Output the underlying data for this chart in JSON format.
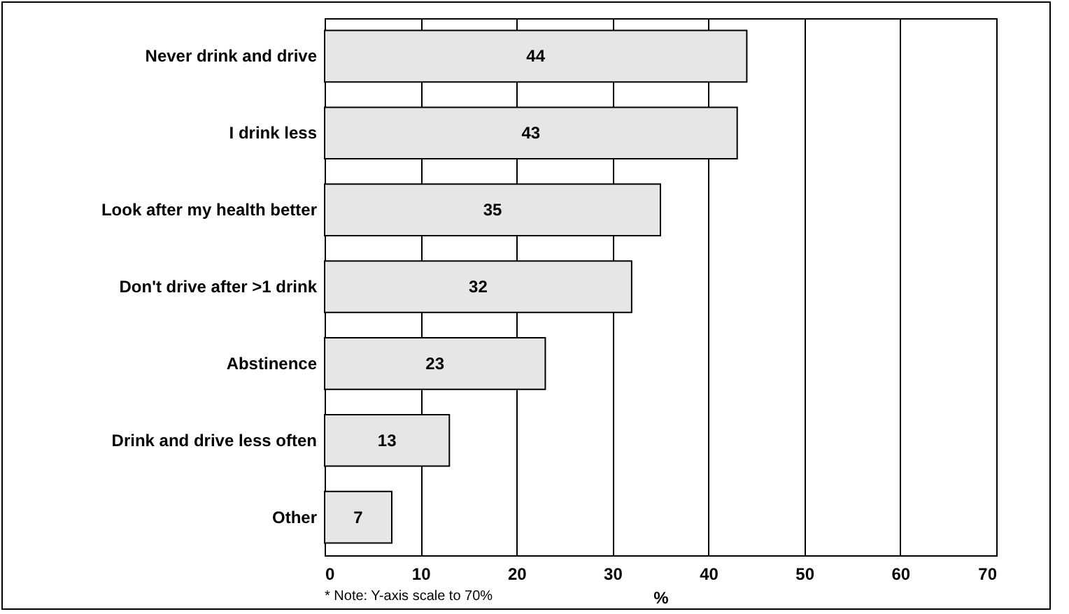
{
  "chart_data": {
    "type": "bar",
    "orientation": "horizontal",
    "categories": [
      "Never drink and drive",
      "I drink less",
      "Look after my health better",
      "Don't drive after >1 drink",
      "Abstinence",
      "Drink and drive less often",
      "Other"
    ],
    "values": [
      44,
      43,
      35,
      32,
      23,
      13,
      7
    ],
    "color": "#e6e6e6",
    "xlabel": "%",
    "xlim": [
      0,
      70
    ],
    "xticks": [
      0,
      10,
      20,
      30,
      40,
      50,
      60,
      70
    ],
    "grid": "x",
    "data_labels": true,
    "annotations": [
      "* Note: Y-axis scale to 70%"
    ]
  }
}
